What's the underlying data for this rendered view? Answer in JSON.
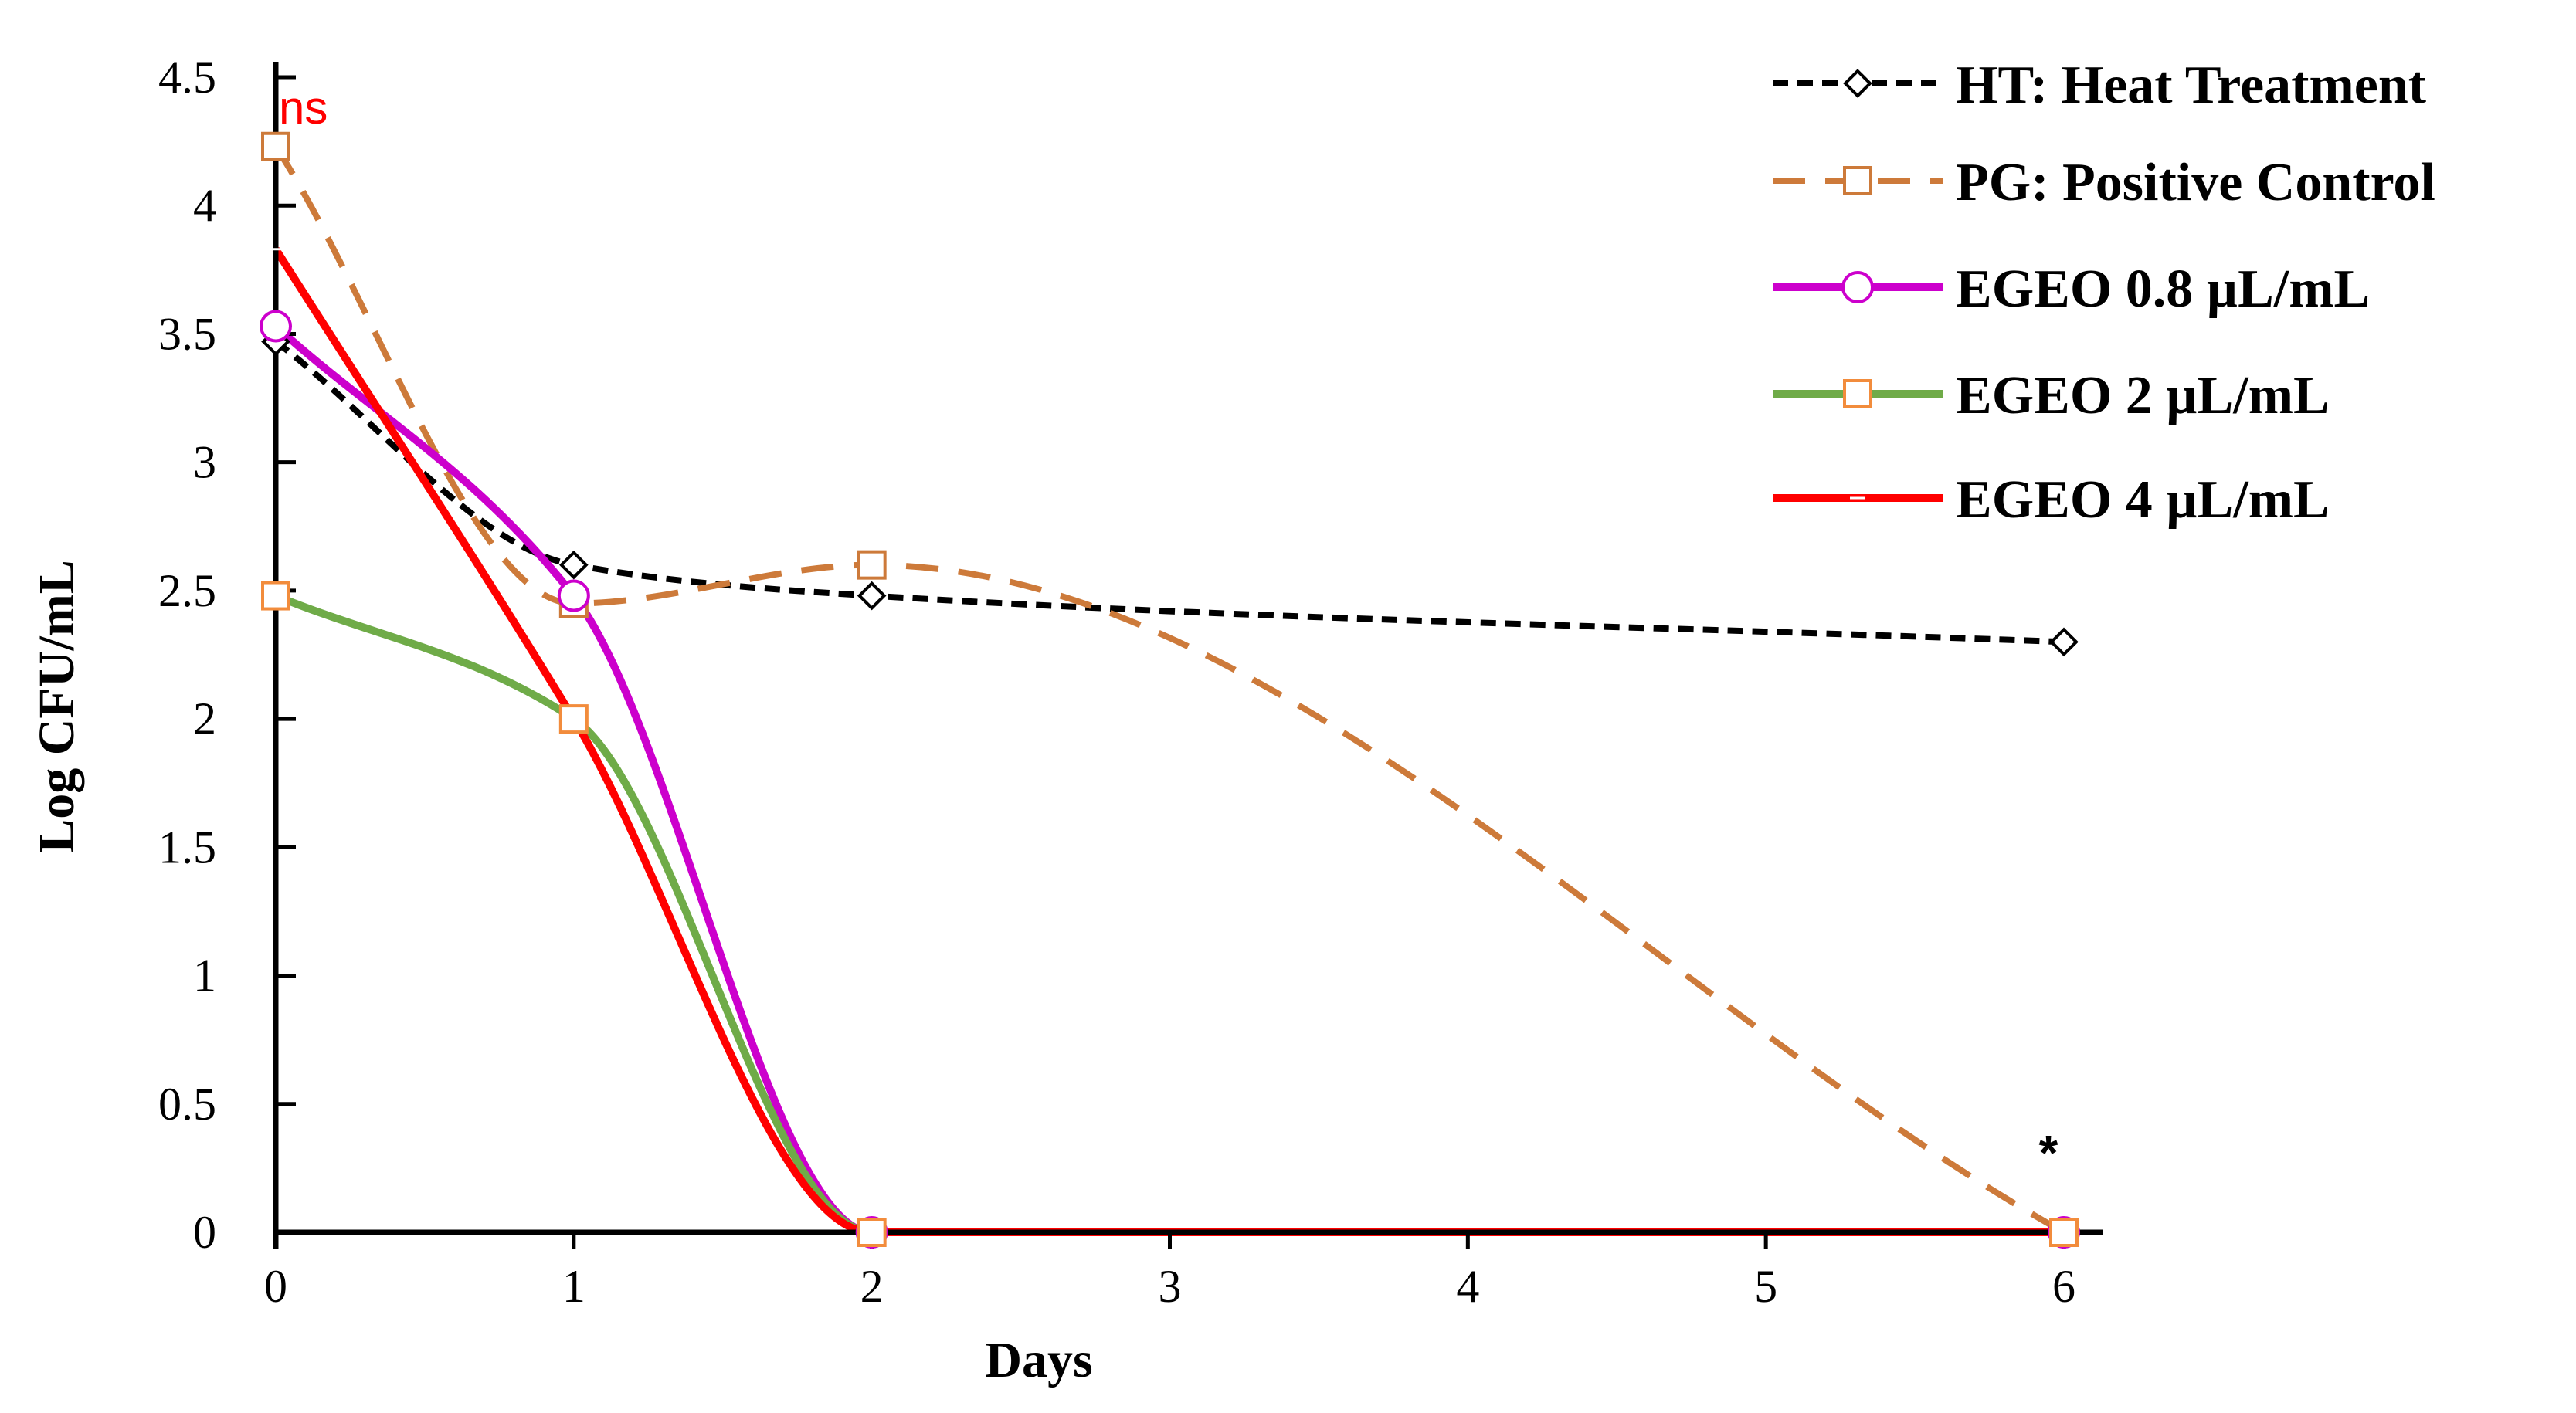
{
  "chart_data": {
    "type": "line",
    "title": "",
    "xlabel": "Days",
    "ylabel": "Log CFU/mL",
    "xlim": [
      0,
      6
    ],
    "ylim": [
      0,
      4.5
    ],
    "x_ticks": [
      0,
      1,
      2,
      3,
      4,
      5,
      6
    ],
    "y_ticks": [
      0,
      0.5,
      1,
      1.5,
      2,
      2.5,
      3,
      3.5,
      4,
      4.5
    ],
    "x_tick_labels": [
      "0",
      "1",
      "2",
      "3",
      "4",
      "5",
      "6"
    ],
    "y_tick_labels": [
      "0",
      "0.5",
      "1",
      "1.5",
      "2",
      "2.5",
      "3",
      "3.5",
      "4",
      "4.5"
    ],
    "grid": false,
    "legend_position": "top-right",
    "series": [
      {
        "name": "HT: Heat Treatment",
        "x": [
          0,
          1,
          2,
          6
        ],
        "values": [
          3.47,
          2.6,
          2.48,
          2.3
        ],
        "color": "#000000",
        "dash": "dotted",
        "marker": "diamond",
        "marker_color": "#000000"
      },
      {
        "name": "PG: Positive Control",
        "x": [
          0,
          1,
          2,
          6
        ],
        "values": [
          4.23,
          2.45,
          2.6,
          0
        ],
        "color": "#cd7a3a",
        "dash": "dashed",
        "marker": "square",
        "marker_color": "#cd7a3a"
      },
      {
        "name": "EGEO 0.8 µL/mL",
        "x": [
          0,
          1,
          2,
          6
        ],
        "values": [
          3.53,
          2.48,
          0,
          0
        ],
        "color": "#cc00cc",
        "dash": "solid",
        "marker": "circle",
        "marker_color": "#cc00cc"
      },
      {
        "name": "EGEO 2 µL/mL",
        "x": [
          0,
          1,
          2,
          6
        ],
        "values": [
          2.48,
          2.0,
          0,
          0
        ],
        "color": "#6fab48",
        "dash": "solid",
        "marker": "square",
        "marker_color": "#f28c3c"
      },
      {
        "name": "EGEO 4 µL/mL",
        "x": [
          0,
          1,
          2,
          6
        ],
        "values": [
          3.83,
          2.0,
          0,
          0
        ],
        "color": "#ff0000",
        "dash": "solid",
        "marker": "dash",
        "marker_color": "#ff0000"
      }
    ],
    "annotations": [
      {
        "text": "ns",
        "x": 0,
        "y": 4.5,
        "color": "#ff0000"
      },
      {
        "text": "*",
        "x": 6,
        "y": 0.25,
        "color": "#000000"
      }
    ]
  }
}
